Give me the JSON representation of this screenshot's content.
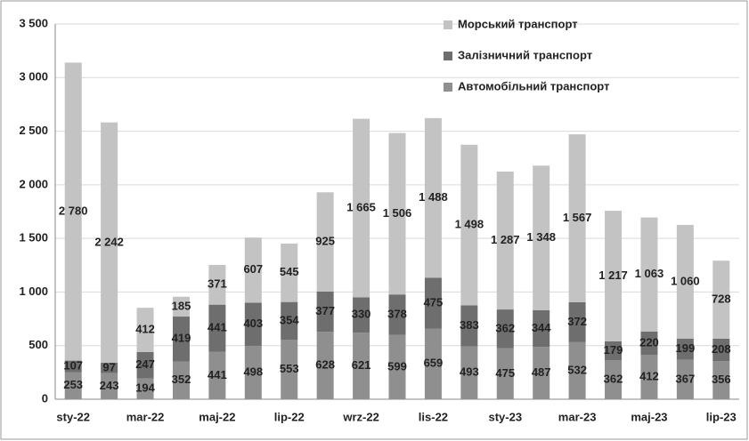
{
  "chart_data": {
    "type": "bar",
    "stacked": true,
    "categories": [
      "sty-22",
      null,
      "mar-22",
      null,
      "maj-22",
      null,
      "lip-22",
      null,
      "wrz-22",
      null,
      "lis-22",
      null,
      "sty-23",
      null,
      "mar-23",
      null,
      "maj-23",
      null,
      "lip-23"
    ],
    "series": [
      {
        "name": "Автомобільний транспорт",
        "color": "#8f8f8f",
        "values": [
          253,
          243,
          194,
          352,
          441,
          498,
          553,
          628,
          621,
          599,
          659,
          493,
          475,
          487,
          532,
          362,
          412,
          367,
          356
        ]
      },
      {
        "name": "Залізничний транспорт",
        "color": "#6e6e6e",
        "values": [
          107,
          97,
          247,
          419,
          441,
          403,
          354,
          377,
          330,
          378,
          475,
          383,
          362,
          344,
          372,
          179,
          220,
          199,
          208
        ]
      },
      {
        "name": "Морський транспорт",
        "color": "#c3c3c3",
        "values": [
          2780,
          2242,
          412,
          185,
          371,
          607,
          545,
          925,
          1665,
          1506,
          1488,
          1498,
          1287,
          1348,
          1567,
          1217,
          1063,
          1060,
          728
        ],
        "value_labels": [
          "2 780",
          "2 242",
          "412",
          "185",
          "371",
          "607",
          "545",
          "925",
          "1 665",
          "1 506",
          "1 488",
          "1 498",
          "1 287",
          "1 348",
          "1 567",
          "1 217",
          "1 063",
          "1 060",
          "728"
        ]
      }
    ],
    "ylim": [
      0,
      3500
    ],
    "yticks": [
      0,
      {
        "value": 500,
        "label": "500"
      },
      {
        "value": 1000,
        "label": "1 000"
      },
      {
        "value": 1500,
        "label": "1 500"
      },
      {
        "value": 2000,
        "label": "2 000"
      },
      {
        "value": 2500,
        "label": "2 500"
      },
      {
        "value": 3000,
        "label": "3 000"
      },
      {
        "value": 3500,
        "label": "3 500"
      }
    ],
    "grid": true,
    "legend": "upper right"
  }
}
